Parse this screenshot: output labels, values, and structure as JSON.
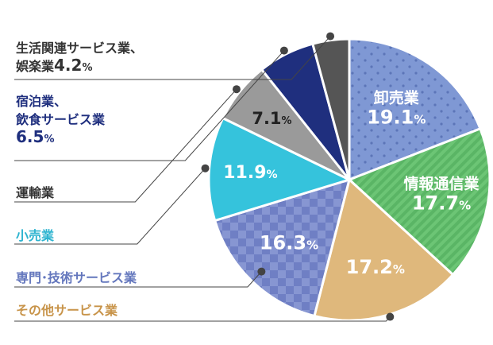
{
  "colors": {
    "wholesale": "#7f98d4",
    "info_comm": "#5ab565",
    "other_services": "#dfb87c",
    "professional": "#8191d0",
    "retail": "#35c3dc",
    "transport": "#9a9a9a",
    "accommodation": "#1f2f7e",
    "living_services": "#555555",
    "leader": "#444444"
  },
  "chart_data": {
    "type": "pie",
    "slices": [
      {
        "key": "wholesale",
        "name": "卸売業",
        "value": 19.1,
        "pct": "19.1",
        "unit": "%"
      },
      {
        "key": "info_comm",
        "name": "情報通信業",
        "value": 17.7,
        "pct": "17.7",
        "unit": "%"
      },
      {
        "key": "other_services",
        "name": "その他サービス業",
        "value": 17.2,
        "pct": "17.2",
        "unit": "%"
      },
      {
        "key": "professional",
        "name": "専門･技術サービス業",
        "value": 16.3,
        "pct": "16.3",
        "unit": "%"
      },
      {
        "key": "retail",
        "name": "小売業",
        "value": 11.9,
        "pct": "11.9",
        "unit": "%"
      },
      {
        "key": "transport",
        "name": "運輸業",
        "value": 7.1,
        "pct": "7.1",
        "unit": "%"
      },
      {
        "key": "accommodation",
        "name_line1": "宿泊業、",
        "name_line2": "飲食サービス業",
        "value": 6.5,
        "pct": "6.5",
        "unit": "%"
      },
      {
        "key": "living_services",
        "name_line1": "生活関連サービス業、",
        "name_line2": "娯楽業",
        "value": 4.2,
        "pct": "4.2",
        "unit": "%"
      }
    ]
  }
}
